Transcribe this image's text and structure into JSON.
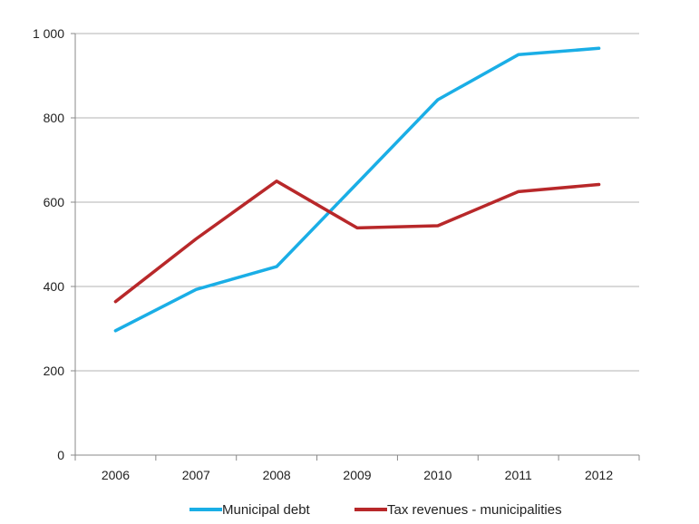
{
  "chart_data": {
    "type": "line",
    "title": "",
    "xlabel": "",
    "ylabel": "",
    "categories": [
      "2006",
      "2007",
      "2008",
      "2009",
      "2010",
      "2011",
      "2012"
    ],
    "ylim": [
      0,
      1000
    ],
    "yticks": [
      0,
      200,
      400,
      600,
      800,
      1000
    ],
    "ytick_labels": [
      "0",
      "200",
      "400",
      "600",
      "800",
      "1 000"
    ],
    "grid": "horizontal",
    "legend_position": "bottom",
    "series": [
      {
        "name": "Municipal debt",
        "color": "#1aaee6",
        "values": [
          295,
          393,
          447,
          645,
          843,
          950,
          965
        ]
      },
      {
        "name": "Tax revenues - municipalities",
        "color": "#b8282a",
        "values": [
          364,
          513,
          650,
          539,
          544,
          625,
          642
        ]
      }
    ]
  }
}
